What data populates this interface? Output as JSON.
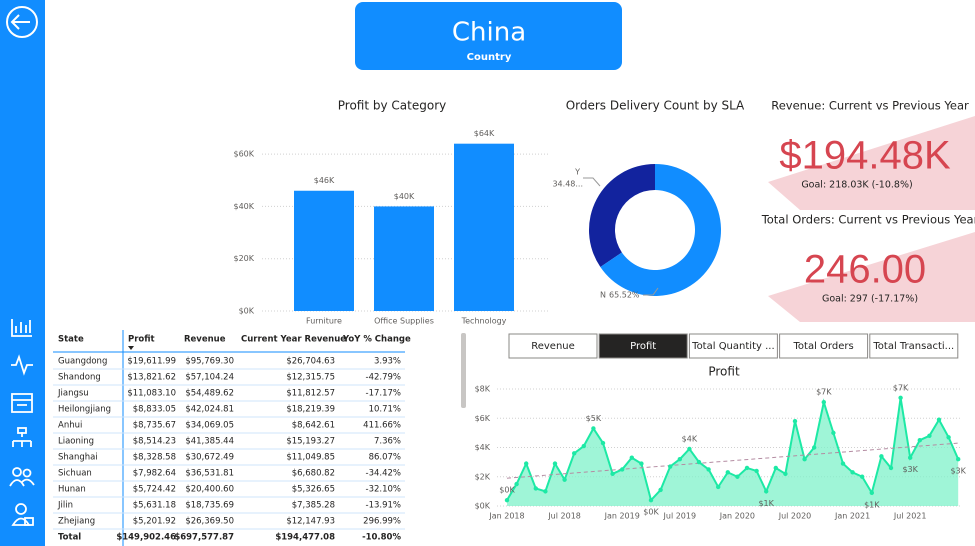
{
  "header": {
    "title": "China",
    "subtitle": "Country"
  },
  "chart_data": [
    {
      "type": "bar",
      "title": "Profit by Category",
      "categories": [
        "Furniture",
        "Office Supplies",
        "Technology"
      ],
      "values": [
        46000,
        40000,
        64000
      ],
      "value_labels": [
        "$46K",
        "$40K",
        "$64K"
      ],
      "color": "#118dff",
      "ylim": [
        0,
        70000
      ],
      "yticks": [
        {
          "value": 0,
          "label": "$0K"
        },
        {
          "value": 20000,
          "label": "$20K"
        },
        {
          "value": 40000,
          "label": "$40K"
        },
        {
          "value": 60000,
          "label": "$60K"
        }
      ],
      "grid": true
    },
    {
      "type": "donut",
      "title": "Orders Delivery Count by SLA",
      "categories": [
        "Y",
        "N"
      ],
      "values": [
        34.48,
        65.52
      ],
      "value_labels": [
        "34.48...",
        "65.52%"
      ],
      "colors": [
        "#12239e",
        "#118dff"
      ]
    },
    {
      "type": "area",
      "title": "Profit",
      "x": [
        "Jan 2018",
        "Feb 2018",
        "Mar 2018",
        "Apr 2018",
        "May 2018",
        "Jun 2018",
        "Jul 2018",
        "Aug 2018",
        "Sep 2018",
        "Oct 2018",
        "Nov 2018",
        "Dec 2018",
        "Jan 2019",
        "Feb 2019",
        "Mar 2019",
        "Apr 2019",
        "May 2019",
        "Jun 2019",
        "Jul 2019",
        "Aug 2019",
        "Sep 2019",
        "Oct 2019",
        "Nov 2019",
        "Dec 2019",
        "Jan 2020",
        "Feb 2020",
        "Mar 2020",
        "Apr 2020",
        "May 2020",
        "Jun 2020",
        "Jul 2020",
        "Aug 2020",
        "Sep 2020",
        "Oct 2020",
        "Nov 2020",
        "Dec 2020",
        "Jan 2021",
        "Feb 2021",
        "Mar 2021",
        "Apr 2021",
        "May 2021",
        "Jun 2021",
        "Jul 2021",
        "Aug 2021",
        "Sep 2021",
        "Oct 2021",
        "Nov 2021",
        "Dec 2021"
      ],
      "values": [
        400,
        1500,
        2900,
        1200,
        1000,
        2900,
        1800,
        3600,
        4100,
        5300,
        4300,
        2200,
        2500,
        3300,
        2900,
        400,
        1100,
        2700,
        3200,
        3900,
        3000,
        2500,
        1300,
        2300,
        2000,
        2600,
        2400,
        1000,
        2600,
        2200,
        5800,
        3200,
        4000,
        7100,
        5000,
        2900,
        2300,
        2000,
        900,
        3400,
        2600,
        7400,
        3300,
        4500,
        4800,
        5900,
        4700,
        3200
      ],
      "value_labels": [
        "$0K",
        null,
        null,
        null,
        null,
        null,
        null,
        null,
        null,
        "$5K",
        null,
        null,
        null,
        null,
        null,
        "$0K",
        null,
        null,
        null,
        "$4K",
        null,
        null,
        null,
        null,
        null,
        null,
        null,
        "$1K",
        null,
        null,
        null,
        null,
        null,
        "$7K",
        null,
        null,
        null,
        null,
        "$1K",
        null,
        null,
        "$7K",
        "$3K",
        null,
        null,
        null,
        null,
        "$3K"
      ],
      "trendline": [
        1900,
        4300
      ],
      "color": "#1de9a5",
      "ylim": [
        0,
        8000
      ],
      "yticks": [
        {
          "value": 0,
          "label": "$0K"
        },
        {
          "value": 2000,
          "label": "$2K"
        },
        {
          "value": 4000,
          "label": "$4K"
        },
        {
          "value": 6000,
          "label": "$6K"
        },
        {
          "value": 8000,
          "label": "$8K"
        }
      ],
      "grid": true
    }
  ],
  "kpis": [
    {
      "title": "Revenue: Current vs Previous Year",
      "value": "$194.48K",
      "goal": "Goal: 218.03K (-10.8%)"
    },
    {
      "title": "Total Orders: Current vs Previous Year",
      "value": "246.00",
      "goal": "Goal: 297 (-17.17%)"
    }
  ],
  "tabs": [
    {
      "label": "Revenue",
      "active": false
    },
    {
      "label": "Profit",
      "active": true
    },
    {
      "label": "Total Quantity ...",
      "active": false
    },
    {
      "label": "Total Orders",
      "active": false
    },
    {
      "label": "Total Transacti...",
      "active": false
    }
  ],
  "table": {
    "columns": [
      "State",
      "Profit",
      "Revenue",
      "Current Year Revenue",
      "YoY % Change"
    ],
    "rows": [
      [
        "Guangdong",
        "$19,611.99",
        "$95,769.30",
        "$26,704.63",
        "3.93%"
      ],
      [
        "Shandong",
        "$13,821.62",
        "$57,104.24",
        "$12,315.75",
        "-42.79%"
      ],
      [
        "Jiangsu",
        "$11,083.10",
        "$54,489.62",
        "$11,812.57",
        "-17.17%"
      ],
      [
        "Heilongjiang",
        "$8,833.05",
        "$42,024.81",
        "$18,219.39",
        "10.71%"
      ],
      [
        "Anhui",
        "$8,735.67",
        "$34,069.05",
        "$8,642.61",
        "411.66%"
      ],
      [
        "Liaoning",
        "$8,514.23",
        "$41,385.44",
        "$15,193.27",
        "7.36%"
      ],
      [
        "Shanghai",
        "$8,328.58",
        "$30,672.49",
        "$11,049.85",
        "86.07%"
      ],
      [
        "Sichuan",
        "$7,982.64",
        "$36,531.81",
        "$6,680.82",
        "-34.42%"
      ],
      [
        "Hunan",
        "$5,724.42",
        "$20,400.60",
        "$5,326.65",
        "-32.10%"
      ],
      [
        "Jilin",
        "$5,631.18",
        "$18,735.69",
        "$7,385.28",
        "-13.91%"
      ],
      [
        "Zhejiang",
        "$5,201.92",
        "$26,369.50",
        "$12,147.93",
        "296.99%"
      ]
    ],
    "total": [
      "Total",
      "$149,902.46",
      "$697,577.87",
      "$194,477.08",
      "-10.80%"
    ]
  }
}
